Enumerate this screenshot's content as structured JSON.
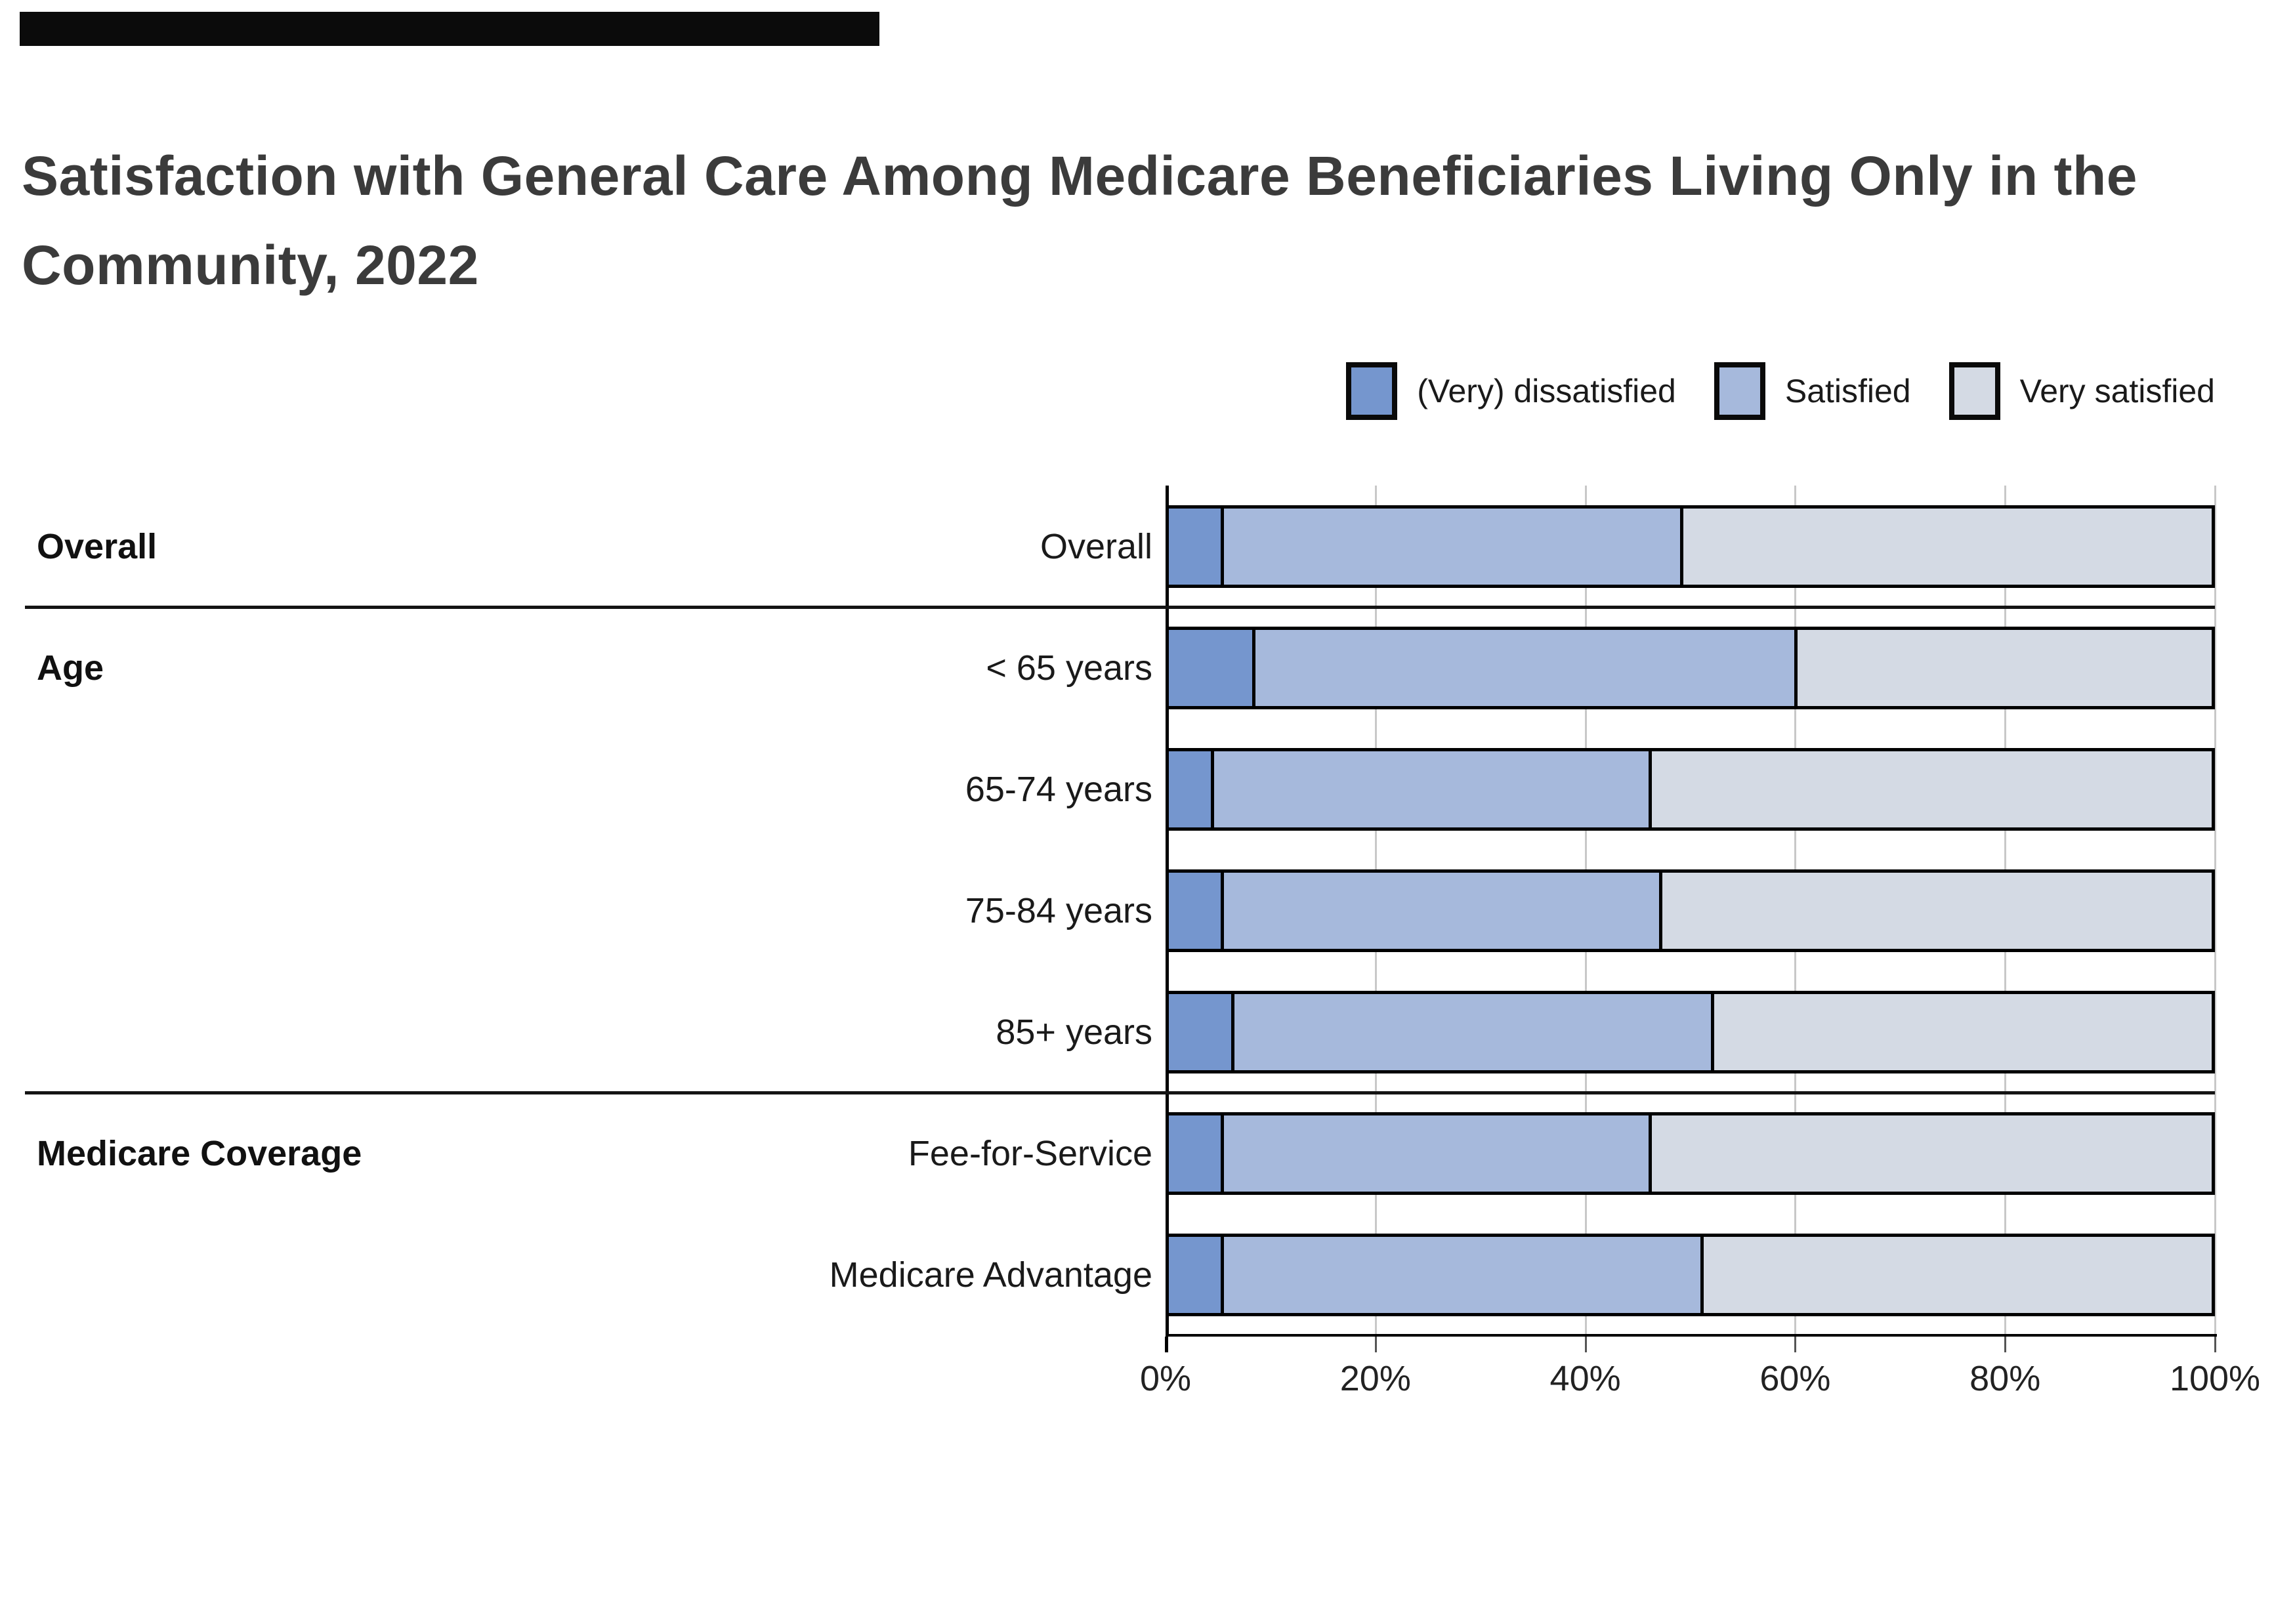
{
  "title": {
    "line1": "Satisfaction with General Care Among Medicare Beneficiaries Living Only in the",
    "line2": "Community, 2022"
  },
  "legend": [
    {
      "label": "(Very) dissatisfied",
      "color": "#7596CE"
    },
    {
      "label": "Satisfied",
      "color": "#A6B9DC"
    },
    {
      "label": "Very satisfied",
      "color": "#D4DAE4"
    }
  ],
  "axis": {
    "tick_labels": [
      "0%",
      "20%",
      "40%",
      "60%",
      "80%",
      "100%"
    ],
    "tick_values": [
      0,
      20,
      40,
      60,
      80,
      100
    ]
  },
  "colors": {
    "dissatisfied": "#7596CE",
    "satisfied": "#A6B9DC",
    "very_satisfied": "#D4DAE4",
    "gridline": "#C8C8C8",
    "axis": "#000000",
    "title_text": "#3B3B3B"
  },
  "chart_data": {
    "type": "bar",
    "orientation": "horizontal",
    "stacked": true,
    "title": "Satisfaction with General Care Among Medicare Beneficiaries Living Only in the Community, 2022",
    "categories": [
      "Overall",
      "< 65 years",
      "65-74 years",
      "75-84 years",
      "85+ years",
      "Fee-for-Service",
      "Medicare Advantage"
    ],
    "groups": [
      {
        "label": "Overall",
        "rows": [
          0
        ]
      },
      {
        "label": "Age",
        "rows": [
          1,
          2,
          3,
          4
        ]
      },
      {
        "label": "Medicare Coverage",
        "rows": [
          5,
          6
        ]
      }
    ],
    "series": [
      {
        "name": "(Very) dissatisfied",
        "color": "#7596CE",
        "values": [
          5,
          8,
          4,
          5,
          6,
          5,
          5
        ]
      },
      {
        "name": "Satisfied",
        "color": "#A6B9DC",
        "values": [
          44,
          52,
          42,
          42,
          46,
          41,
          46
        ]
      },
      {
        "name": "Very satisfied",
        "color": "#D4DAE4",
        "values": [
          51,
          40,
          54,
          53,
          48,
          54,
          49
        ]
      }
    ],
    "xlabel": "",
    "ylabel": "",
    "xlim": [
      0,
      100
    ],
    "x_ticks": [
      "0%",
      "20%",
      "40%",
      "60%",
      "80%",
      "100%"
    ],
    "grid": "vertical",
    "legend_position": "top-right"
  }
}
